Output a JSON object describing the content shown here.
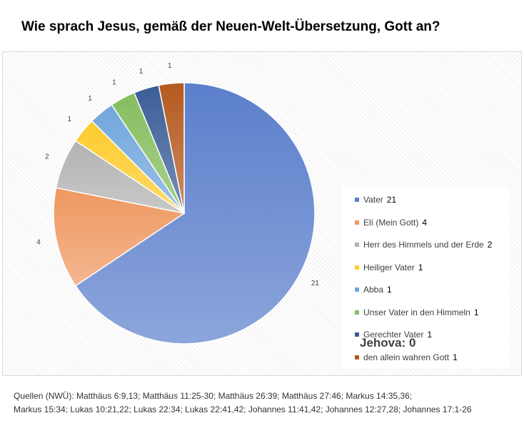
{
  "chart_data": {
    "type": "pie",
    "title": "Wie sprach Jesus, gemäß der Neuen-Welt-Übersetzung, Gott an?",
    "categories": [
      "Vater",
      "Elí (Mein Gott)",
      "Herr des Himmels und der Erde",
      "Heiliger Vater",
      "Abba",
      "Unser Vater in den Himmeln",
      "Gerechter Vater",
      "den allein wahren Gott"
    ],
    "values": [
      21,
      4,
      2,
      1,
      1,
      1,
      1,
      1
    ],
    "colors": [
      "#5b7fcb",
      "#ef9860",
      "#b2b2b2",
      "#fdcb2c",
      "#71a6dd",
      "#85bd5f",
      "#3b5d97",
      "#b5591e"
    ],
    "legend_position": "right"
  },
  "note": "Jehova: 0",
  "sources": {
    "line1": "Quellen (NWÜ): Matthäus 6:9,13; Matthäus 11:25-30; Matthäus 26:39; Matthäus 27:46; Markus 14:35,36;",
    "line2": "Markus 15:34; Lukas 10:21,22; Lukas 22:34; Lukas 22:41,42; Johannes 11:41,42; Johannes 12:27,28; Johannes 17:1-26"
  }
}
